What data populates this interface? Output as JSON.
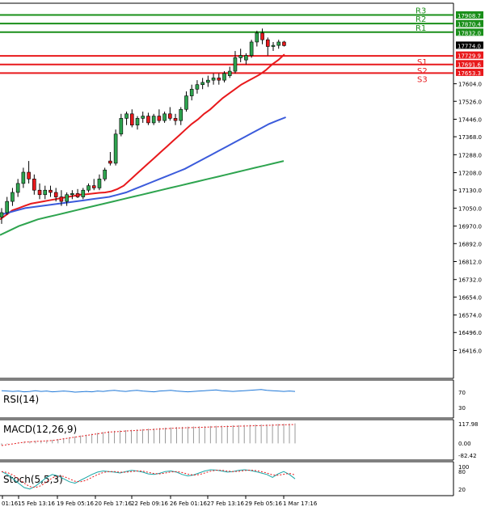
{
  "chart_data": {
    "type": "candlestick",
    "symbol_levels": {
      "resistance": [
        {
          "name": "R3",
          "value": 17908.7
        },
        {
          "name": "R2",
          "value": 17870.4
        },
        {
          "name": "R1",
          "value": 17832.0
        }
      ],
      "support": [
        {
          "name": "S1",
          "value": 17729.9
        },
        {
          "name": "S2",
          "value": 17691.6
        },
        {
          "name": "S3",
          "value": 17653.3
        }
      ],
      "last_price": 17774.0
    },
    "level_tags": [
      "17908.7",
      "17870.4",
      "17832.0",
      "17774.0",
      "17729.9",
      "17691.6",
      "17653.3"
    ],
    "price_ticks": [
      "17604.0",
      "17526.0",
      "17446.0",
      "17368.0",
      "17288.0",
      "17208.0",
      "17130.0",
      "17050.0",
      "16970.0",
      "16892.0",
      "16812.0",
      "16732.0",
      "16654.0",
      "16574.0",
      "16496.0",
      "16416.0"
    ],
    "time_labels": [
      "01:16",
      "15 Feb 13:16",
      "19 Feb 05:16",
      "20 Feb 17:16",
      "22 Feb 09:16",
      "26 Feb 01:16",
      "27 Feb 13:16",
      "29 Feb 05:16",
      "1 Mar 17:16"
    ],
    "candles": [
      {
        "o": 17010,
        "h": 17050,
        "l": 16980,
        "c": 17030
      },
      {
        "o": 17030,
        "h": 17100,
        "l": 17020,
        "c": 17080
      },
      {
        "o": 17080,
        "h": 17140,
        "l": 17060,
        "c": 17120
      },
      {
        "o": 17120,
        "h": 17180,
        "l": 17100,
        "c": 17160
      },
      {
        "o": 17160,
        "h": 17230,
        "l": 17140,
        "c": 17210
      },
      {
        "o": 17210,
        "h": 17260,
        "l": 17160,
        "c": 17180
      },
      {
        "o": 17180,
        "h": 17200,
        "l": 17110,
        "c": 17130
      },
      {
        "o": 17130,
        "h": 17160,
        "l": 17090,
        "c": 17110
      },
      {
        "o": 17110,
        "h": 17150,
        "l": 17090,
        "c": 17130
      },
      {
        "o": 17130,
        "h": 17150,
        "l": 17100,
        "c": 17120
      },
      {
        "o": 17120,
        "h": 17140,
        "l": 17080,
        "c": 17100
      },
      {
        "o": 17100,
        "h": 17130,
        "l": 17060,
        "c": 17080
      },
      {
        "o": 17080,
        "h": 17120,
        "l": 17060,
        "c": 17110
      },
      {
        "o": 17110,
        "h": 17130,
        "l": 17090,
        "c": 17115
      },
      {
        "o": 17115,
        "h": 17135,
        "l": 17095,
        "c": 17100
      },
      {
        "o": 17100,
        "h": 17140,
        "l": 17090,
        "c": 17130
      },
      {
        "o": 17130,
        "h": 17160,
        "l": 17120,
        "c": 17150
      },
      {
        "o": 17150,
        "h": 17180,
        "l": 17130,
        "c": 17140
      },
      {
        "o": 17140,
        "h": 17200,
        "l": 17130,
        "c": 17180
      },
      {
        "o": 17180,
        "h": 17230,
        "l": 17170,
        "c": 17220
      },
      {
        "o": 17260,
        "h": 17300,
        "l": 17240,
        "c": 17250
      },
      {
        "o": 17250,
        "h": 17400,
        "l": 17240,
        "c": 17380
      },
      {
        "o": 17380,
        "h": 17470,
        "l": 17370,
        "c": 17450
      },
      {
        "o": 17450,
        "h": 17480,
        "l": 17420,
        "c": 17470
      },
      {
        "o": 17470,
        "h": 17490,
        "l": 17410,
        "c": 17420
      },
      {
        "o": 17420,
        "h": 17460,
        "l": 17400,
        "c": 17450
      },
      {
        "o": 17450,
        "h": 17480,
        "l": 17430,
        "c": 17460
      },
      {
        "o": 17460,
        "h": 17475,
        "l": 17420,
        "c": 17430
      },
      {
        "o": 17430,
        "h": 17470,
        "l": 17420,
        "c": 17460
      },
      {
        "o": 17460,
        "h": 17490,
        "l": 17430,
        "c": 17440
      },
      {
        "o": 17440,
        "h": 17480,
        "l": 17430,
        "c": 17470
      },
      {
        "o": 17470,
        "h": 17500,
        "l": 17440,
        "c": 17450
      },
      {
        "o": 17450,
        "h": 17470,
        "l": 17420,
        "c": 17440
      },
      {
        "o": 17440,
        "h": 17500,
        "l": 17420,
        "c": 17490
      },
      {
        "o": 17490,
        "h": 17570,
        "l": 17480,
        "c": 17550
      },
      {
        "o": 17550,
        "h": 17600,
        "l": 17530,
        "c": 17580
      },
      {
        "o": 17580,
        "h": 17620,
        "l": 17560,
        "c": 17600
      },
      {
        "o": 17600,
        "h": 17630,
        "l": 17580,
        "c": 17610
      },
      {
        "o": 17610,
        "h": 17640,
        "l": 17590,
        "c": 17620
      },
      {
        "o": 17620,
        "h": 17650,
        "l": 17600,
        "c": 17630
      },
      {
        "o": 17630,
        "h": 17650,
        "l": 17600,
        "c": 17620
      },
      {
        "o": 17620,
        "h": 17660,
        "l": 17610,
        "c": 17650
      },
      {
        "o": 17640,
        "h": 17680,
        "l": 17630,
        "c": 17660
      },
      {
        "o": 17660,
        "h": 17750,
        "l": 17650,
        "c": 17720
      },
      {
        "o": 17720,
        "h": 17760,
        "l": 17700,
        "c": 17730
      },
      {
        "o": 17710,
        "h": 17740,
        "l": 17690,
        "c": 17730
      },
      {
        "o": 17730,
        "h": 17800,
        "l": 17720,
        "c": 17790
      },
      {
        "o": 17790,
        "h": 17840,
        "l": 17770,
        "c": 17830
      },
      {
        "o": 17830,
        "h": 17850,
        "l": 17780,
        "c": 17800
      },
      {
        "o": 17800,
        "h": 17810,
        "l": 17730,
        "c": 17770
      },
      {
        "o": 17770,
        "h": 17790,
        "l": 17750,
        "c": 17775
      },
      {
        "o": 17775,
        "h": 17800,
        "l": 17760,
        "c": 17790
      },
      {
        "o": 17790,
        "h": 17795,
        "l": 17770,
        "c": 17774
      }
    ],
    "moving_averages": [
      {
        "name": "MA fast",
        "color": "#e8191c",
        "values": [
          17000,
          17020,
          17040,
          17050,
          17060,
          17070,
          17075,
          17080,
          17085,
          17090,
          17095,
          17100,
          17105,
          17110,
          17112,
          17115,
          17118,
          17120,
          17125,
          17135,
          17150,
          17175,
          17200,
          17225,
          17250,
          17275,
          17300,
          17325,
          17350,
          17375,
          17400,
          17425,
          17445,
          17470,
          17490,
          17515,
          17540,
          17560,
          17580,
          17600,
          17615,
          17630,
          17645,
          17665,
          17690,
          17710,
          17735
        ]
      },
      {
        "name": "MA medium",
        "color": "#3b5bdb",
        "values": [
          17020,
          17030,
          17040,
          17050,
          17055,
          17060,
          17065,
          17070,
          17075,
          17080,
          17085,
          17090,
          17095,
          17100,
          17110,
          17120,
          17135,
          17150,
          17165,
          17180,
          17195,
          17210,
          17225,
          17245,
          17265,
          17285,
          17305,
          17325,
          17345,
          17365,
          17385,
          17405,
          17425,
          17440,
          17455
        ]
      },
      {
        "name": "MA slow",
        "color": "#2ea44f",
        "values": [
          16930,
          16950,
          16970,
          16985,
          17000,
          17010,
          17020,
          17030,
          17040,
          17050,
          17060,
          17070,
          17080,
          17090,
          17100,
          17110,
          17120,
          17130,
          17140,
          17150,
          17160,
          17170,
          17180,
          17190,
          17200,
          17210,
          17220,
          17230,
          17240,
          17250,
          17260
        ]
      }
    ],
    "indicators": [
      {
        "name": "RSI(14)",
        "levels": [
          "70",
          "30"
        ],
        "values": [
          72,
          71,
          70,
          71,
          69,
          70,
          72,
          70,
          71,
          69,
          70,
          71,
          70,
          68,
          69,
          70,
          69,
          71,
          70,
          72,
          73,
          71,
          70,
          72,
          73,
          71,
          70,
          69,
          71,
          72,
          73,
          71,
          70,
          69,
          70,
          71,
          72,
          73,
          74,
          72,
          71,
          70,
          71,
          72,
          73,
          74,
          75,
          73,
          72,
          71,
          70,
          71,
          70
        ]
      },
      {
        "name": "MACD(12,26,9)",
        "levels": [
          "117.98",
          "0.00",
          "-82.42"
        ],
        "values": [
          -10,
          -5,
          0,
          5,
          10,
          12,
          14,
          16,
          18,
          20,
          25,
          30,
          35,
          40,
          45,
          50,
          55,
          60,
          65,
          70,
          72,
          74,
          76,
          78,
          80,
          82,
          84,
          86,
          88,
          90,
          92,
          94,
          95,
          96,
          97,
          98,
          99,
          100,
          101,
          102,
          103,
          104,
          105,
          106,
          107,
          108,
          109,
          110,
          111,
          112,
          113,
          114,
          115
        ]
      },
      {
        "name": "Stoch(5,5,3)",
        "levels": [
          "100",
          "80",
          "20"
        ],
        "values": [
          80,
          70,
          55,
          40,
          25,
          20,
          30,
          45,
          60,
          70,
          65,
          55,
          45,
          40,
          50,
          60,
          70,
          78,
          82,
          80,
          78,
          75,
          80,
          84,
          82,
          78,
          72,
          70,
          74,
          80,
          82,
          78,
          70,
          65,
          68,
          75,
          82,
          86,
          85,
          82,
          78,
          80,
          84,
          86,
          84,
          80,
          75,
          70,
          60,
          72,
          80,
          70,
          55
        ]
      }
    ]
  }
}
